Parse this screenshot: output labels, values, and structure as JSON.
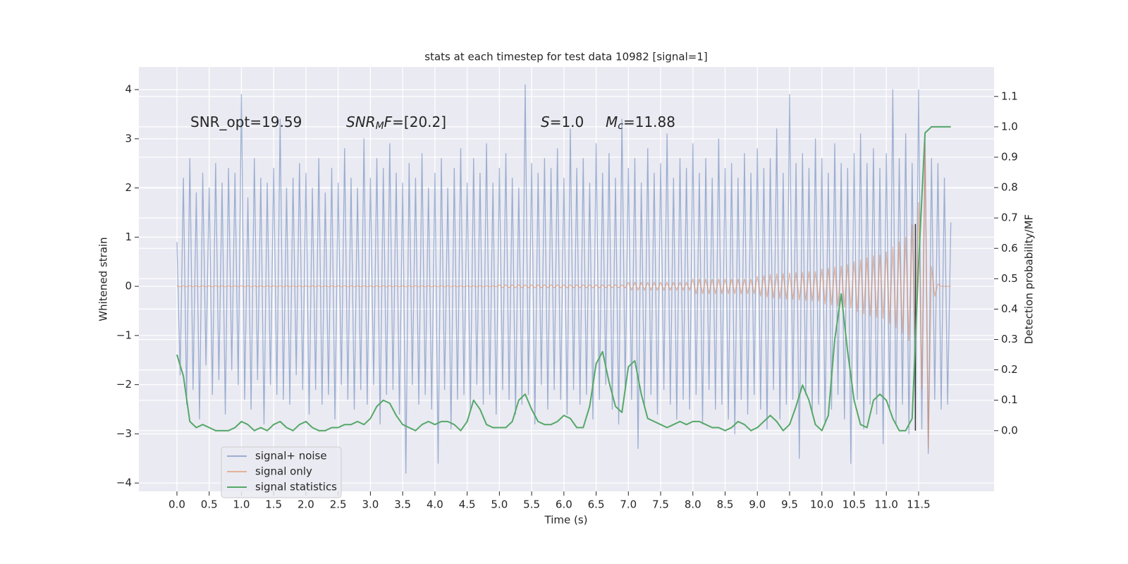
{
  "chart_data": {
    "type": "line",
    "title": "stats at each timestep for test data 10982 [signal=1]",
    "x_label": "Time (s)",
    "y_label": "Whitened strain",
    "y2_label": "Detection probability/MF",
    "xlim": [
      -0.59,
      12.67
    ],
    "ylim": [
      -4.17,
      4.46
    ],
    "y2lim": [
      -0.2,
      1.197
    ],
    "xticks": [
      {
        "value": 0,
        "label": "0.0"
      },
      0.5,
      {
        "value": 1,
        "label": "1.0"
      },
      1.5,
      {
        "value": 2,
        "label": "2.0"
      },
      2.5,
      {
        "value": 3,
        "label": "3.0"
      },
      3.5,
      {
        "value": 4,
        "label": "4.0"
      },
      4.5,
      {
        "value": 5,
        "label": "5.0"
      },
      5.5,
      {
        "value": 6,
        "label": "6.0"
      },
      6.5,
      {
        "value": 7,
        "label": "7.0"
      },
      7.5,
      {
        "value": 8,
        "label": "8.0"
      },
      8.5,
      {
        "value": 9,
        "label": "9.0"
      },
      9.5,
      {
        "value": 10,
        "label": "10.0"
      },
      10.5,
      {
        "value": 11,
        "label": "11.0"
      },
      11.5
    ],
    "yticks": [
      {
        "value": -4,
        "label": "−4"
      },
      {
        "value": -3,
        "label": "−3"
      },
      {
        "value": -2,
        "label": "−2"
      },
      {
        "value": -1,
        "label": "−1"
      },
      0,
      1,
      2,
      3,
      4
    ],
    "y2ticks": [
      {
        "value": 0,
        "label": "0.0"
      },
      0.1,
      0.2,
      0.3,
      0.4,
      0.5,
      0.6,
      0.7,
      0.8,
      0.9,
      {
        "value": 1,
        "label": "1.0"
      },
      1.1
    ],
    "grid": true,
    "legend": "lower left",
    "annotations": [
      [
        {
          "text": "SNR_opt=19.59"
        }
      ],
      [
        {
          "text": "SNR",
          "style": "italic"
        },
        {
          "text": "M",
          "style": "italic-sub"
        },
        {
          "text": "F",
          "style": "italic"
        },
        {
          "text": "=[20.2]"
        }
      ],
      [
        {
          "text": "S",
          "style": "italic"
        },
        {
          "text": "=1.0"
        }
      ],
      [
        {
          "text": "M",
          "style": "italic"
        },
        {
          "text": "c",
          "style": "italic-sub"
        },
        {
          "text": "=11.88"
        }
      ]
    ],
    "marker_line": {
      "x": 11.45,
      "y2": [
        0,
        0.68
      ],
      "color": "#333333"
    },
    "x": [
      0,
      0.05,
      0.1,
      0.15,
      0.2,
      0.25,
      0.3,
      0.35,
      0.4,
      0.45,
      0.5,
      0.55,
      0.6,
      0.65,
      0.7,
      0.75,
      0.8,
      0.85,
      0.9,
      0.95,
      1,
      1.05,
      1.1,
      1.15,
      1.2,
      1.25,
      1.3,
      1.35,
      1.4,
      1.45,
      1.5,
      1.55,
      1.6,
      1.65,
      1.7,
      1.75,
      1.8,
      1.85,
      1.9,
      1.95,
      2,
      2.05,
      2.1,
      2.15,
      2.2,
      2.25,
      2.3,
      2.35,
      2.4,
      2.45,
      2.5,
      2.55,
      2.6,
      2.65,
      2.7,
      2.75,
      2.8,
      2.85,
      2.9,
      2.95,
      3,
      3.05,
      3.1,
      3.15,
      3.2,
      3.25,
      3.3,
      3.35,
      3.4,
      3.45,
      3.5,
      3.55,
      3.6,
      3.65,
      3.7,
      3.75,
      3.8,
      3.85,
      3.9,
      3.95,
      4,
      4.05,
      4.1,
      4.15,
      4.2,
      4.25,
      4.3,
      4.35,
      4.4,
      4.45,
      4.5,
      4.55,
      4.6,
      4.65,
      4.7,
      4.75,
      4.8,
      4.85,
      4.9,
      4.95,
      5,
      5.05,
      5.1,
      5.15,
      5.2,
      5.25,
      5.3,
      5.35,
      5.4,
      5.45,
      5.5,
      5.55,
      5.6,
      5.65,
      5.7,
      5.75,
      5.8,
      5.85,
      5.9,
      5.95,
      6,
      6.05,
      6.1,
      6.15,
      6.2,
      6.25,
      6.3,
      6.35,
      6.4,
      6.45,
      6.5,
      6.55,
      6.6,
      6.65,
      6.7,
      6.75,
      6.8,
      6.85,
      6.9,
      6.95,
      7,
      7.05,
      7.1,
      7.15,
      7.2,
      7.25,
      7.3,
      7.35,
      7.4,
      7.45,
      7.5,
      7.55,
      7.6,
      7.65,
      7.7,
      7.75,
      7.8,
      7.85,
      7.9,
      7.95,
      8,
      8.05,
      8.1,
      8.15,
      8.2,
      8.25,
      8.3,
      8.35,
      8.4,
      8.45,
      8.5,
      8.55,
      8.6,
      8.65,
      8.7,
      8.75,
      8.8,
      8.85,
      8.9,
      8.95,
      9,
      9.05,
      9.1,
      9.15,
      9.2,
      9.25,
      9.3,
      9.35,
      9.4,
      9.45,
      9.5,
      9.55,
      9.6,
      9.65,
      9.7,
      9.75,
      9.8,
      9.85,
      9.9,
      9.95,
      10,
      10.05,
      10.1,
      10.15,
      10.2,
      10.25,
      10.3,
      10.35,
      10.4,
      10.45,
      10.5,
      10.55,
      10.6,
      10.65,
      10.7,
      10.75,
      10.8,
      10.85,
      10.9,
      10.95,
      11,
      11.05,
      11.1,
      11.15,
      11.2,
      11.25,
      11.3,
      11.35,
      11.4,
      11.45,
      11.5,
      11.55,
      11.6,
      11.65,
      11.7,
      11.75,
      11.8,
      11.85,
      11.9,
      11.95,
      12
    ],
    "series": [
      {
        "name": "signal+ noise",
        "color": "rgba(76,114,176,0.5)",
        "values": [
          0.9,
          -1.8,
          2.2,
          -2.4,
          2.6,
          -2.1,
          1.9,
          -2.7,
          2.3,
          -1.6,
          2.0,
          -2.2,
          2.5,
          -1.9,
          2.1,
          -2.6,
          2.4,
          -1.7,
          2.3,
          -2.0,
          3.9,
          -2.3,
          1.8,
          -2.5,
          2.6,
          -1.9,
          2.2,
          -2.8,
          2.1,
          -2.0,
          2.4,
          -2.2,
          3.4,
          -2.3,
          2.0,
          -2.4,
          2.2,
          -1.8,
          2.5,
          -2.1,
          2.3,
          -2.6,
          2.0,
          -2.1,
          2.6,
          -2.4,
          1.9,
          -2.2,
          2.4,
          -2.7,
          2.1,
          -2.0,
          2.8,
          -2.3,
          2.2,
          -2.5,
          2.0,
          -2.1,
          3.0,
          -2.4,
          2.2,
          -2.0,
          2.6,
          -2.8,
          2.4,
          -2.2,
          2.9,
          -2.1,
          2.3,
          -2.6,
          2.1,
          -3.8,
          2.5,
          -2.0,
          2.2,
          -2.4,
          2.7,
          -2.2,
          2.0,
          -2.5,
          2.3,
          -3.6,
          2.6,
          -2.1,
          2.0,
          -2.9,
          2.4,
          -2.3,
          2.8,
          -2.2,
          2.1,
          -2.5,
          2.6,
          -2.0,
          2.3,
          -2.4,
          2.9,
          -2.2,
          2.1,
          -2.6,
          2.4,
          -2.1,
          2.7,
          -2.3,
          2.2,
          -2.6,
          2.0,
          -2.4,
          4.1,
          -2.2,
          2.5,
          -2.8,
          2.3,
          -2.0,
          2.6,
          -2.5,
          2.4,
          -2.1,
          2.8,
          -2.3,
          2.2,
          -2.6,
          3.2,
          -2.1,
          2.4,
          -2.4,
          2.6,
          -2.2,
          2.1,
          -2.7,
          2.9,
          -2.3,
          2.3,
          -2.0,
          2.7,
          -2.5,
          2.2,
          -2.8,
          3.4,
          -2.1,
          2.4,
          -2.3,
          2.6,
          -3.3,
          2.1,
          -2.4,
          2.8,
          -2.2,
          2.3,
          -2.6,
          2.5,
          -2.1,
          3.1,
          -2.4,
          2.2,
          -2.7,
          2.6,
          -2.3,
          2.4,
          -2.5,
          2.9,
          -2.2,
          2.3,
          -2.8,
          2.6,
          -2.1,
          2.2,
          -2.5,
          3.0,
          -2.4,
          2.4,
          -2.7,
          2.5,
          -3.0,
          2.2,
          -2.3,
          2.7,
          -2.6,
          2.3,
          -2.2,
          2.8,
          -2.5,
          2.4,
          -2.9,
          2.6,
          -2.1,
          3.2,
          -2.7,
          2.3,
          -2.4,
          3.9,
          -2.3,
          2.5,
          -3.5,
          2.7,
          -2.2,
          2.4,
          -2.6,
          3.0,
          -2.4,
          2.6,
          -2.8,
          2.3,
          -2.5,
          2.9,
          -2.2,
          2.5,
          -2.7,
          2.4,
          -3.6,
          2.7,
          -2.3,
          3.1,
          -2.9,
          2.5,
          -2.4,
          2.8,
          -2.6,
          2.4,
          -3.2,
          2.7,
          -2.5,
          4.0,
          -2.8,
          2.6,
          -2.4,
          3.1,
          -3.0,
          2.5,
          -2.7,
          4.0,
          -2.9,
          3.0,
          -3.4,
          2.6,
          -2.3,
          2.5,
          -2.5,
          2.2,
          -2.4,
          1.3
        ]
      },
      {
        "name": "signal only",
        "color": "rgba(221,132,82,0.55)",
        "values": [
          0.01,
          -0.01,
          0.01,
          -0.01,
          0.01,
          -0.01,
          0.01,
          -0.01,
          0.01,
          -0.01,
          0.01,
          -0.01,
          0.01,
          -0.01,
          0.01,
          -0.01,
          0.01,
          -0.01,
          0.01,
          -0.01,
          0.01,
          -0.01,
          0.01,
          -0.01,
          0.01,
          -0.01,
          0.01,
          -0.01,
          0.01,
          -0.01,
          0.01,
          -0.01,
          0.01,
          -0.01,
          0.01,
          -0.01,
          0.01,
          -0.01,
          0.01,
          -0.01,
          0.01,
          -0.01,
          0.01,
          -0.01,
          0.01,
          -0.01,
          0.01,
          -0.01,
          0.01,
          -0.01,
          0.01,
          -0.01,
          0.01,
          -0.01,
          0.01,
          -0.01,
          0.01,
          -0.01,
          0.01,
          -0.01,
          0.01,
          -0.01,
          0.01,
          -0.01,
          0.01,
          -0.01,
          0.01,
          -0.01,
          0.01,
          -0.01,
          0.01,
          -0.01,
          0.01,
          -0.01,
          0.01,
          -0.01,
          0.01,
          -0.01,
          0.01,
          -0.01,
          0.01,
          -0.01,
          0.01,
          -0.01,
          0.01,
          -0.01,
          0.01,
          -0.01,
          0.01,
          -0.01,
          0.01,
          -0.01,
          0.01,
          -0.01,
          0.01,
          -0.01,
          0.01,
          -0.01,
          0.01,
          -0.01,
          0.03,
          -0.03,
          0.03,
          -0.03,
          0.03,
          -0.03,
          0.03,
          -0.03,
          0.03,
          -0.03,
          0.03,
          -0.03,
          0.03,
          -0.03,
          0.03,
          -0.03,
          0.03,
          -0.03,
          0.03,
          -0.03,
          0.03,
          -0.03,
          0.03,
          -0.03,
          0.03,
          -0.03,
          0.03,
          -0.03,
          0.03,
          -0.03,
          0.03,
          -0.03,
          0.03,
          -0.03,
          0.03,
          -0.03,
          0.03,
          -0.03,
          0.03,
          -0.03,
          0.08,
          -0.08,
          0.08,
          -0.08,
          0.08,
          -0.08,
          0.08,
          -0.08,
          0.08,
          -0.08,
          0.08,
          -0.08,
          0.08,
          -0.08,
          0.08,
          -0.08,
          0.08,
          -0.08,
          0.08,
          -0.08,
          0.15,
          -0.15,
          0.15,
          -0.15,
          0.15,
          -0.15,
          0.15,
          -0.15,
          0.15,
          -0.15,
          0.15,
          -0.15,
          0.15,
          -0.15,
          0.15,
          -0.15,
          0.15,
          -0.15,
          0.15,
          -0.15,
          0.2,
          -0.2,
          0.22,
          -0.22,
          0.24,
          -0.24,
          0.25,
          -0.25,
          0.26,
          -0.26,
          0.27,
          -0.27,
          0.28,
          -0.28,
          0.29,
          -0.29,
          0.3,
          -0.3,
          0.3,
          -0.3,
          0.35,
          -0.36,
          0.37,
          -0.38,
          0.39,
          -0.4,
          0.41,
          -0.42,
          0.44,
          -0.45,
          0.5,
          -0.52,
          0.54,
          -0.56,
          0.58,
          -0.6,
          0.62,
          -0.63,
          0.64,
          -0.65,
          0.7,
          -0.75,
          0.8,
          -0.85,
          0.9,
          -0.95,
          1.0,
          -1.1,
          1.25,
          -1.4,
          1.7,
          -2.1,
          2.9,
          -3.3,
          0.4,
          -0.2,
          0.05,
          0,
          0,
          0,
          0
        ]
      },
      {
        "name": "signal statistics",
        "color": "#55a868",
        "axis": "y2",
        "x": [
          0,
          0.1,
          0.2,
          0.3,
          0.4,
          0.5,
          0.6,
          0.7,
          0.8,
          0.9,
          1,
          1.1,
          1.2,
          1.3,
          1.4,
          1.5,
          1.6,
          1.7,
          1.8,
          1.9,
          2,
          2.1,
          2.2,
          2.3,
          2.4,
          2.5,
          2.6,
          2.7,
          2.8,
          2.9,
          3,
          3.1,
          3.2,
          3.3,
          3.4,
          3.5,
          3.6,
          3.7,
          3.8,
          3.9,
          4,
          4.1,
          4.2,
          4.3,
          4.4,
          4.5,
          4.6,
          4.7,
          4.8,
          4.9,
          5,
          5.1,
          5.2,
          5.3,
          5.4,
          5.5,
          5.6,
          5.7,
          5.8,
          5.9,
          6,
          6.1,
          6.2,
          6.3,
          6.4,
          6.5,
          6.6,
          6.7,
          6.8,
          6.9,
          7,
          7.1,
          7.2,
          7.3,
          7.4,
          7.5,
          7.6,
          7.7,
          7.8,
          7.9,
          8,
          8.1,
          8.2,
          8.3,
          8.4,
          8.5,
          8.6,
          8.7,
          8.8,
          8.9,
          9,
          9.1,
          9.2,
          9.3,
          9.4,
          9.5,
          9.6,
          9.7,
          9.8,
          9.9,
          10,
          10.1,
          10.2,
          10.3,
          10.4,
          10.5,
          10.6,
          10.7,
          10.8,
          10.9,
          11,
          11.1,
          11.2,
          11.3,
          11.4,
          11.5,
          11.6,
          11.7,
          11.8,
          11.9,
          12
        ],
        "values": [
          0.25,
          0.18,
          0.03,
          0.01,
          0.02,
          0.01,
          0,
          0,
          0,
          0.01,
          0.03,
          0.02,
          0,
          0.01,
          0,
          0.02,
          0.03,
          0.01,
          0,
          0.02,
          0.03,
          0.01,
          0,
          0,
          0.01,
          0.01,
          0.02,
          0.02,
          0.03,
          0.02,
          0.04,
          0.08,
          0.1,
          0.09,
          0.05,
          0.02,
          0.01,
          0,
          0.02,
          0.03,
          0.02,
          0.03,
          0.03,
          0.02,
          0,
          0.03,
          0.1,
          0.07,
          0.02,
          0.01,
          0.01,
          0.01,
          0.03,
          0.1,
          0.12,
          0.07,
          0.03,
          0.02,
          0.02,
          0.03,
          0.05,
          0.04,
          0.01,
          0.01,
          0.08,
          0.22,
          0.26,
          0.16,
          0.08,
          0.06,
          0.21,
          0.23,
          0.12,
          0.04,
          0.03,
          0.02,
          0.01,
          0.02,
          0.03,
          0.02,
          0.03,
          0.03,
          0.02,
          0.01,
          0.01,
          0,
          0.01,
          0.03,
          0.02,
          0,
          0.01,
          0.03,
          0.05,
          0.03,
          0,
          0.02,
          0.08,
          0.15,
          0.1,
          0.02,
          0,
          0.05,
          0.3,
          0.45,
          0.26,
          0.1,
          0.02,
          0.01,
          0.1,
          0.12,
          0.1,
          0.04,
          0,
          0,
          0.04,
          0.55,
          0.98,
          1,
          1,
          1,
          1
        ]
      }
    ]
  }
}
